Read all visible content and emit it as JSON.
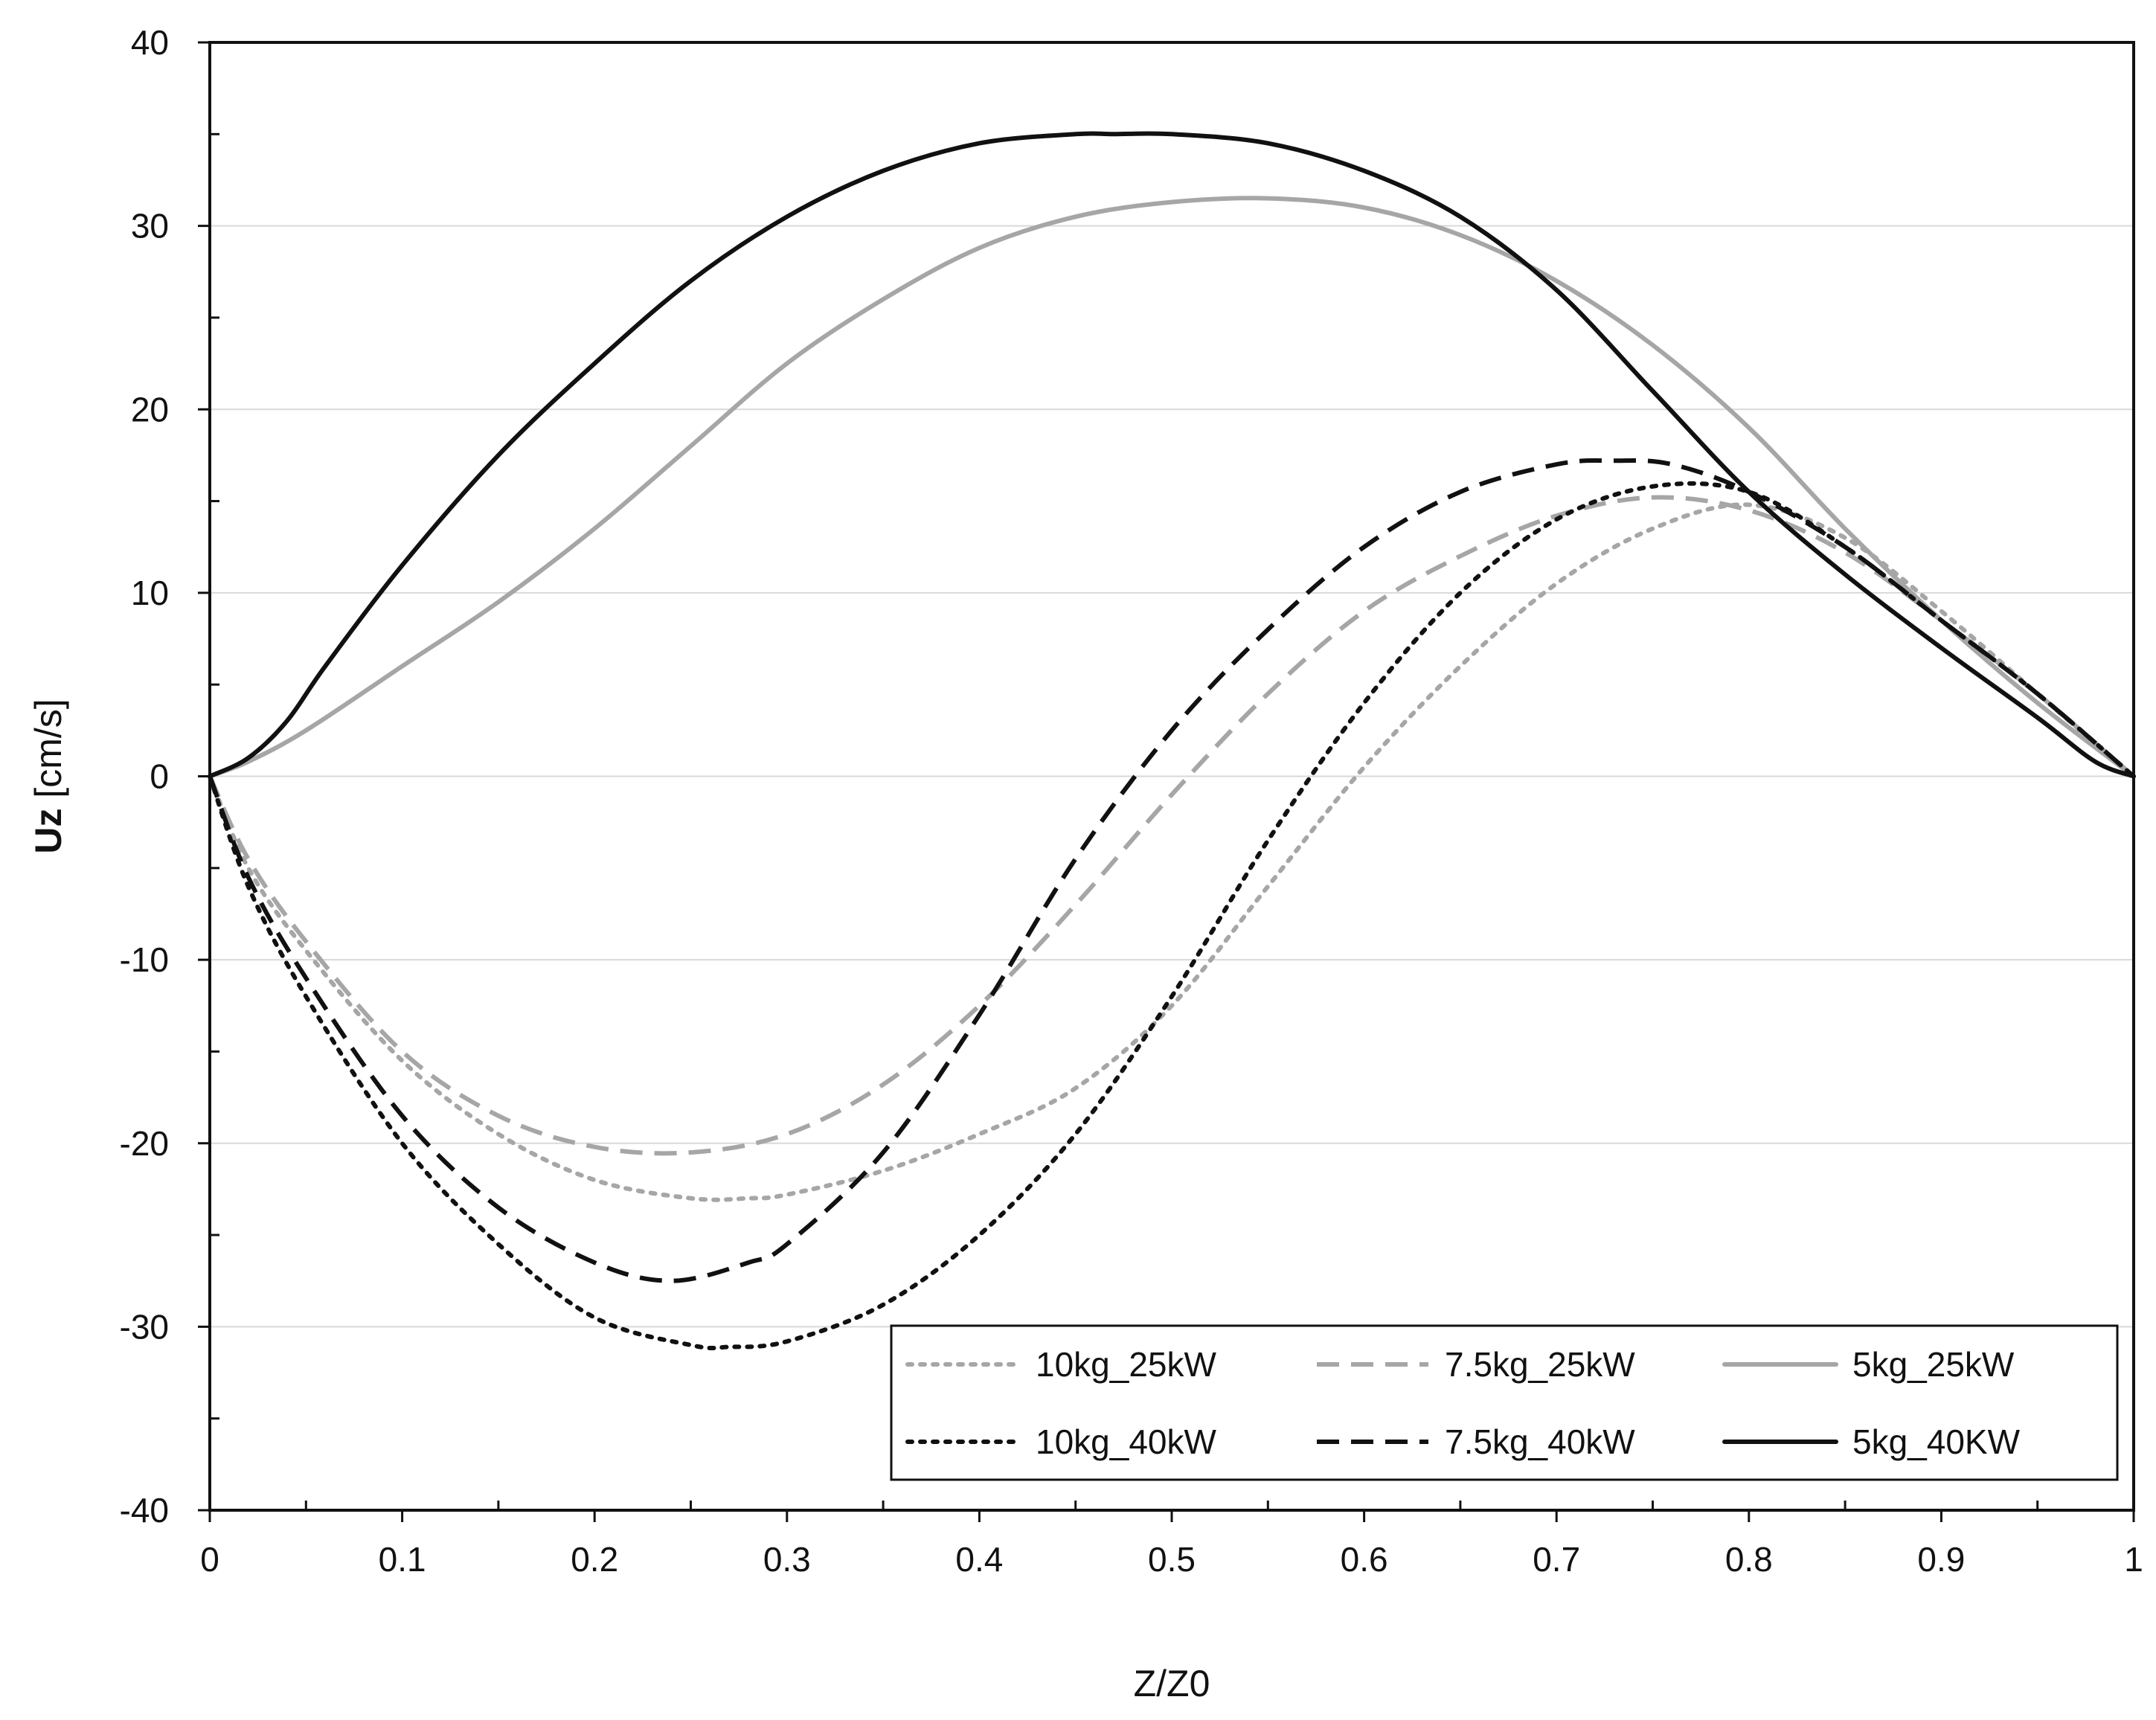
{
  "chart_data": {
    "type": "line",
    "title": "",
    "xlabel": "Z/Z0",
    "ylabel": {
      "bold": "Uz",
      "rest": " [cm/s]"
    },
    "xlim": [
      0,
      1
    ],
    "ylim": [
      -40,
      40
    ],
    "xticks": [
      0,
      0.1,
      0.2,
      0.3,
      0.4,
      0.5,
      0.6,
      0.7,
      0.8,
      0.9,
      1
    ],
    "xtick_labels": [
      "0",
      "0.1",
      "0.2",
      "0.3",
      "0.4",
      "0.5",
      "0.6",
      "0.7",
      "0.8",
      "0.9",
      "1"
    ],
    "yticks": [
      -40,
      -30,
      -20,
      -10,
      0,
      10,
      20,
      30,
      40
    ],
    "ytick_labels": [
      "-40",
      "-30",
      "-20",
      "-10",
      "0",
      "10",
      "20",
      "30",
      "40"
    ],
    "grid": "horizontal",
    "legend_position": "bottom-right",
    "series": [
      {
        "name": "10kg_25kW",
        "color": "#a6a6a6",
        "style": "dotted",
        "x": [
          0,
          0.02,
          0.05,
          0.1,
          0.15,
          0.2,
          0.25,
          0.28,
          0.3,
          0.35,
          0.4,
          0.45,
          0.5,
          0.55,
          0.6,
          0.65,
          0.7,
          0.75,
          0.8,
          0.85,
          0.9,
          0.95,
          1.0
        ],
        "y": [
          0,
          -5,
          -9.5,
          -15.5,
          -19.5,
          -22,
          -23,
          -23,
          -22.8,
          -21.5,
          -19.5,
          -17,
          -12.5,
          -6,
          0.5,
          6,
          10.5,
          13.5,
          14.8,
          13,
          9,
          4.5,
          0
        ]
      },
      {
        "name": "7.5kg_25kW",
        "color": "#a6a6a6",
        "style": "dashed",
        "x": [
          0,
          0.02,
          0.05,
          0.1,
          0.15,
          0.2,
          0.25,
          0.3,
          0.35,
          0.4,
          0.45,
          0.5,
          0.55,
          0.6,
          0.65,
          0.7,
          0.75,
          0.8,
          0.85,
          0.9,
          0.95,
          1.0
        ],
        "y": [
          0,
          -4.5,
          -9,
          -15,
          -18.5,
          -20.2,
          -20.5,
          -19.5,
          -16.8,
          -12.5,
          -7,
          -1,
          4.5,
          9,
          12,
          14.2,
          15.2,
          14.5,
          12.2,
          8.5,
          4.5,
          0
        ]
      },
      {
        "name": "5kg_25kW",
        "color": "#a6a6a6",
        "style": "solid",
        "x": [
          0,
          0.02,
          0.05,
          0.1,
          0.15,
          0.2,
          0.25,
          0.3,
          0.35,
          0.4,
          0.45,
          0.5,
          0.55,
          0.6,
          0.65,
          0.7,
          0.75,
          0.8,
          0.85,
          0.9,
          0.95,
          1.0
        ],
        "y": [
          0,
          0.8,
          2.5,
          6,
          9.5,
          13.5,
          18,
          22.5,
          26,
          28.8,
          30.5,
          31.3,
          31.5,
          31,
          29.5,
          27,
          23.5,
          19,
          13.5,
          8.5,
          4,
          0
        ]
      },
      {
        "name": "10kg_40kW",
        "color": "#111111",
        "style": "dotted",
        "x": [
          0,
          0.02,
          0.05,
          0.1,
          0.15,
          0.2,
          0.25,
          0.27,
          0.3,
          0.35,
          0.4,
          0.45,
          0.5,
          0.55,
          0.6,
          0.65,
          0.7,
          0.75,
          0.8,
          0.85,
          0.9,
          0.95,
          1.0
        ],
        "y": [
          0,
          -6,
          -12,
          -20,
          -25.5,
          -29.5,
          -31,
          -31.1,
          -30.8,
          -28.8,
          -25,
          -19.5,
          -12,
          -3.5,
          4,
          10,
          14,
          15.8,
          15.5,
          12.5,
          8.5,
          4.5,
          0
        ]
      },
      {
        "name": "7.5kg_40kW",
        "color": "#111111",
        "style": "dashed",
        "x": [
          0,
          0.02,
          0.05,
          0.1,
          0.15,
          0.2,
          0.24,
          0.28,
          0.3,
          0.35,
          0.4,
          0.45,
          0.5,
          0.55,
          0.6,
          0.65,
          0.7,
          0.73,
          0.76,
          0.8,
          0.85,
          0.9,
          0.95,
          1.0
        ],
        "y": [
          0,
          -5.5,
          -11,
          -18.5,
          -23.5,
          -26.5,
          -27.5,
          -26.5,
          -25.5,
          -20.5,
          -13,
          -4.5,
          2.5,
          8,
          12.5,
          15.5,
          17,
          17.2,
          17,
          15.5,
          12.5,
          8.5,
          4.5,
          0
        ]
      },
      {
        "name": "5kg_40KW",
        "color": "#111111",
        "style": "solid",
        "x": [
          0,
          0.02,
          0.04,
          0.06,
          0.1,
          0.15,
          0.2,
          0.25,
          0.3,
          0.35,
          0.4,
          0.45,
          0.47,
          0.5,
          0.55,
          0.6,
          0.65,
          0.7,
          0.75,
          0.8,
          0.85,
          0.9,
          0.95,
          0.98,
          1.0
        ],
        "y": [
          0,
          1,
          3,
          6,
          11.5,
          17.5,
          22.5,
          27,
          30.5,
          33,
          34.5,
          35,
          35,
          35,
          34.5,
          33,
          30.5,
          26.5,
          21,
          15.5,
          11,
          7,
          3.2,
          0.8,
          0
        ]
      }
    ]
  }
}
